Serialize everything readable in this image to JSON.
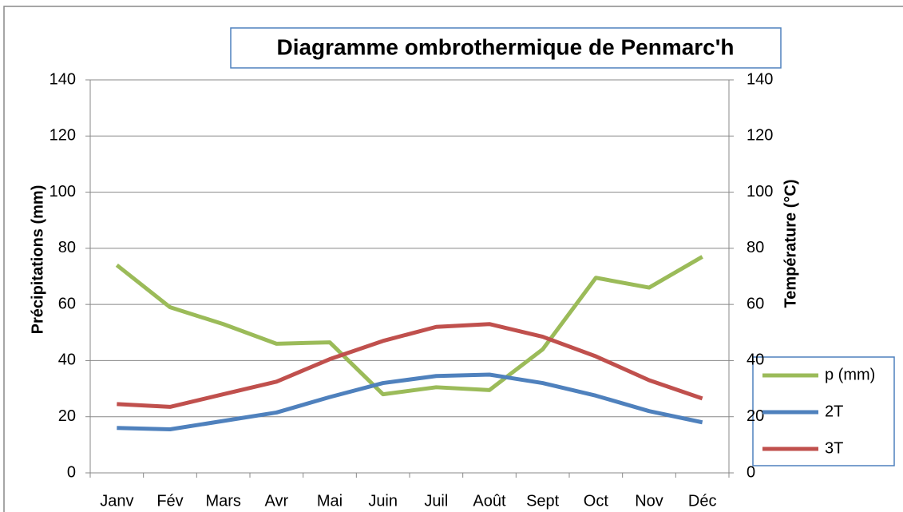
{
  "chart_data": {
    "type": "line",
    "title": "Diagramme ombrothermique de Penmarc'h",
    "y_label": "Précipitations (mm)",
    "y2_label": "Température (°C)",
    "categories": [
      "Janv",
      "Fév",
      "Mars",
      "Avr",
      "Mai",
      "Juin",
      "Juil",
      "Août",
      "Sept",
      "Oct",
      "Nov",
      "Déc"
    ],
    "series": [
      {
        "name": "p (mm)",
        "color": "#9bbb59",
        "values": [
          74,
          59,
          53,
          46,
          46.5,
          28,
          30.5,
          29.5,
          44,
          69.5,
          66,
          77
        ]
      },
      {
        "name": "2T",
        "color": "#4f81bd",
        "axis": "y2",
        "values": [
          16,
          15.5,
          18.5,
          21.5,
          27,
          32,
          34.5,
          35,
          32,
          27.5,
          22,
          18
        ]
      },
      {
        "name": "3T",
        "color": "#c0504d",
        "axis": "y2",
        "values": [
          24.5,
          23.5,
          28,
          32.5,
          40.5,
          47,
          52,
          53,
          48.5,
          41.5,
          33,
          26.5
        ]
      }
    ],
    "ylim": [
      0,
      140
    ],
    "yticks": [
      0,
      20,
      40,
      60,
      80,
      100,
      120,
      140
    ],
    "y2lim": [
      0,
      140
    ],
    "y2ticks": [
      0,
      20,
      40,
      60,
      80,
      100,
      120,
      140
    ],
    "grid": true,
    "legend": "lower right"
  }
}
